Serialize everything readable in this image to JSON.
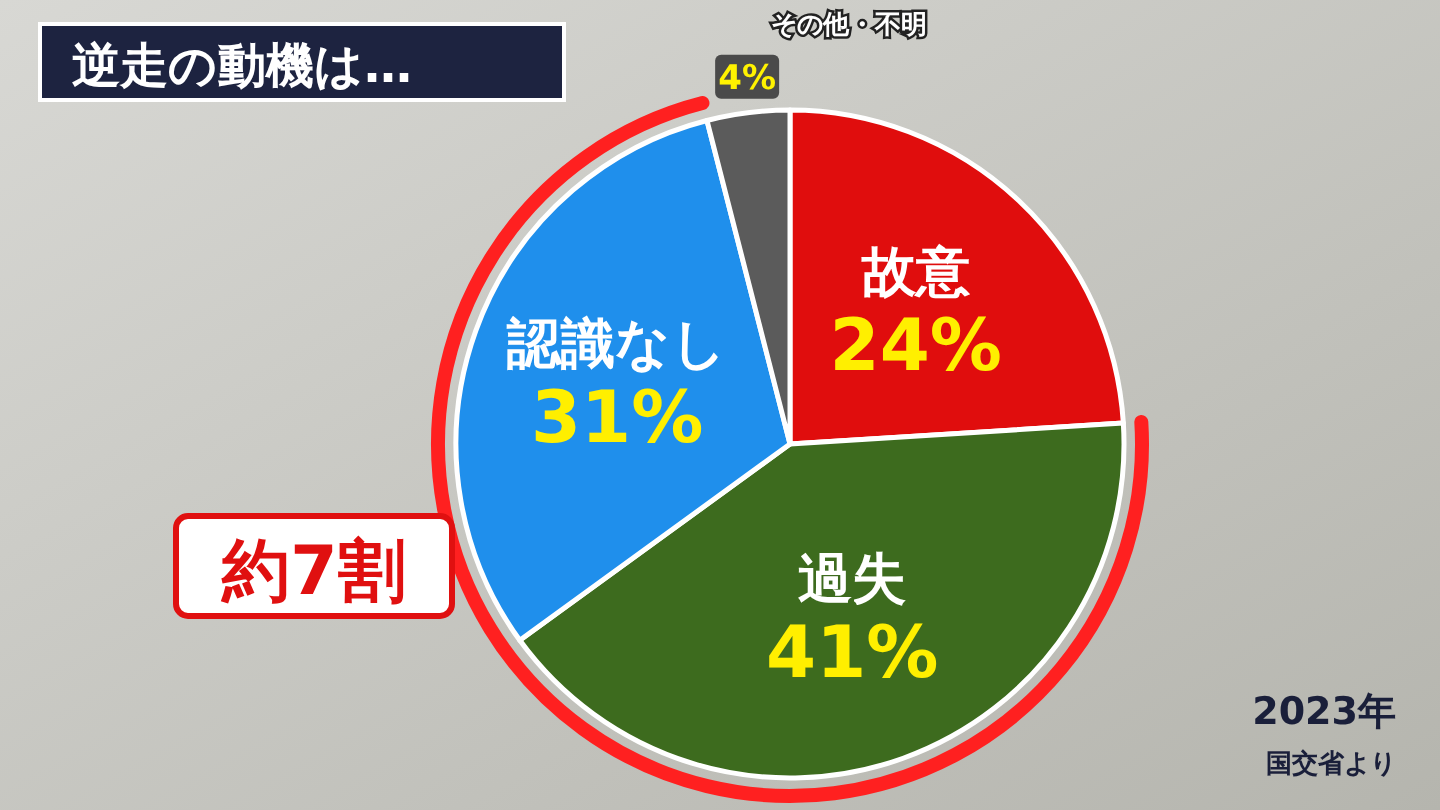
{
  "chart_data": {
    "type": "pie",
    "title": "逆走の動機は…",
    "categories": [
      "故意",
      "過失",
      "認識なし",
      "その他・不明"
    ],
    "values": [
      24,
      41,
      31,
      4
    ],
    "colors": [
      "#e00d0d",
      "#3d6b1e",
      "#1f8fec",
      "#5b5b5b"
    ],
    "value_labels": [
      "24%",
      "41%",
      "31%",
      "4%"
    ],
    "annotations": [
      "約7割",
      "2023年",
      "国交省より"
    ]
  }
}
